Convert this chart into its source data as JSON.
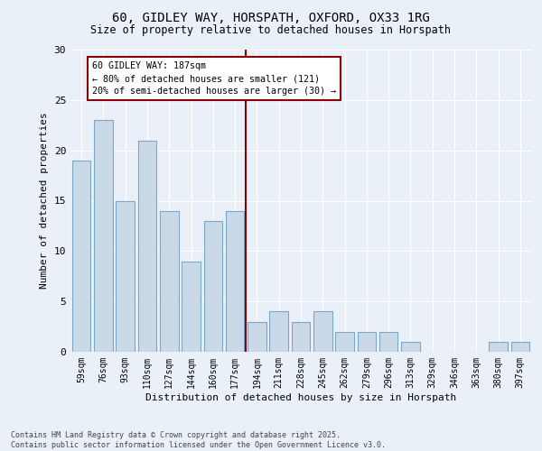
{
  "title": "60, GIDLEY WAY, HORSPATH, OXFORD, OX33 1RG",
  "subtitle": "Size of property relative to detached houses in Horspath",
  "xlabel": "Distribution of detached houses by size in Horspath",
  "ylabel": "Number of detached properties",
  "footer": "Contains HM Land Registry data © Crown copyright and database right 2025.\nContains public sector information licensed under the Open Government Licence v3.0.",
  "categories": [
    "59sqm",
    "76sqm",
    "93sqm",
    "110sqm",
    "127sqm",
    "144sqm",
    "160sqm",
    "177sqm",
    "194sqm",
    "211sqm",
    "228sqm",
    "245sqm",
    "262sqm",
    "279sqm",
    "296sqm",
    "313sqm",
    "329sqm",
    "346sqm",
    "363sqm",
    "380sqm",
    "397sqm"
  ],
  "values": [
    19,
    23,
    15,
    21,
    14,
    9,
    13,
    14,
    3,
    4,
    3,
    4,
    2,
    2,
    2,
    1,
    0,
    0,
    0,
    1,
    1
  ],
  "bar_color": "#c9d9e8",
  "bar_edge_color": "#7da7c4",
  "background_color": "#eaf0f8",
  "grid_color": "#ffffff",
  "vline_x": 7.5,
  "vline_color": "#8b0000",
  "annotation_box_text": "60 GIDLEY WAY: 187sqm\n← 80% of detached houses are smaller (121)\n20% of semi-detached houses are larger (30) →",
  "ylim": [
    0,
    30
  ],
  "yticks": [
    0,
    5,
    10,
    15,
    20,
    25,
    30
  ]
}
